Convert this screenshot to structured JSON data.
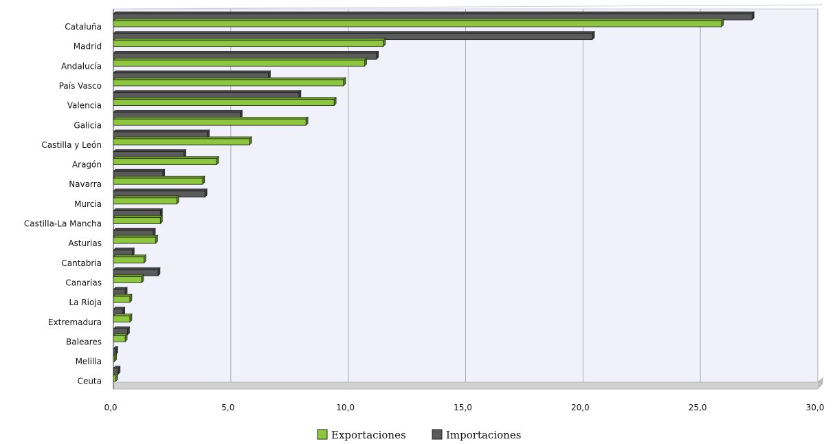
{
  "chart_data": {
    "type": "bar",
    "orientation": "horizontal",
    "categories": [
      "Cataluña",
      "Madrid",
      "Andalucía",
      "País Vasco",
      "Valencia",
      "Galicia",
      "Castilla y León",
      "Aragón",
      "Navarra",
      "Murcia",
      "Castilla-La Mancha",
      "Asturias",
      "Cantabria",
      "Canarias",
      "La Rioja",
      "Extremadura",
      "Baleares",
      "Melilla",
      "Ceuta"
    ],
    "series": [
      {
        "name": "Exportaciones",
        "color": "#8dc63f",
        "values": [
          25.9,
          11.5,
          10.7,
          9.8,
          9.4,
          8.2,
          5.8,
          4.4,
          3.8,
          2.7,
          2.0,
          1.8,
          1.3,
          1.2,
          0.7,
          0.7,
          0.5,
          0.05,
          0.1
        ]
      },
      {
        "name": "Importaciones",
        "color": "#5a5a5a",
        "values": [
          27.2,
          20.4,
          11.2,
          6.6,
          7.9,
          5.4,
          4.0,
          3.0,
          2.1,
          3.9,
          2.0,
          1.7,
          0.8,
          1.9,
          0.5,
          0.4,
          0.6,
          0.1,
          0.2
        ]
      }
    ],
    "xlim": [
      0,
      30
    ],
    "xticks": [
      "0,0",
      "5,0",
      "10,0",
      "15,0",
      "20,0",
      "25,0",
      "30,0"
    ],
    "title": "",
    "xlabel": "",
    "ylabel": "",
    "grid": true,
    "legend_position": "bottom",
    "plot_background": "#f1f1fb"
  }
}
